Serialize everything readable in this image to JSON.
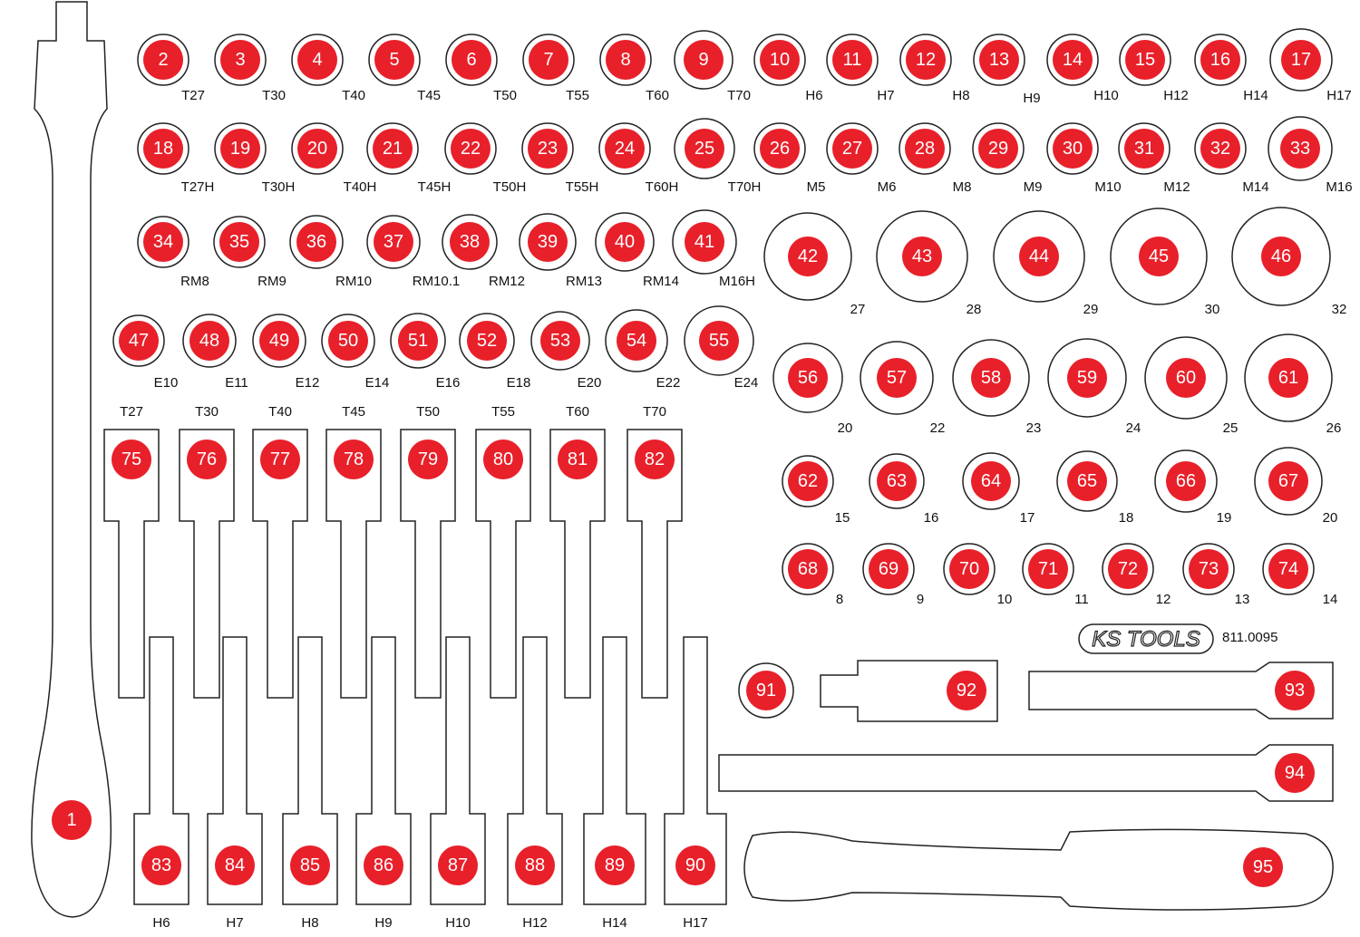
{
  "colors": {
    "marker": "#e8202a",
    "outline": "#222222",
    "background": "#ffffff"
  },
  "logo": {
    "text": "KS TOOLS"
  },
  "article_number": "811.0095",
  "sockets": [
    {
      "num": "2",
      "label": "T27"
    },
    {
      "num": "3",
      "label": "T30"
    },
    {
      "num": "4",
      "label": "T40"
    },
    {
      "num": "5",
      "label": "T45"
    },
    {
      "num": "6",
      "label": "T50"
    },
    {
      "num": "7",
      "label": "T55"
    },
    {
      "num": "8",
      "label": "T60"
    },
    {
      "num": "9",
      "label": "T70"
    },
    {
      "num": "10",
      "label": "H6"
    },
    {
      "num": "11",
      "label": "H7"
    },
    {
      "num": "12",
      "label": "H8"
    },
    {
      "num": "13",
      "label": "H9"
    },
    {
      "num": "14",
      "label": "H10"
    },
    {
      "num": "15",
      "label": "H12"
    },
    {
      "num": "16",
      "label": "H14"
    },
    {
      "num": "17",
      "label": "H17"
    },
    {
      "num": "18",
      "label": "T27H"
    },
    {
      "num": "19",
      "label": "T30H"
    },
    {
      "num": "20",
      "label": "T40H"
    },
    {
      "num": "21",
      "label": "T45H"
    },
    {
      "num": "22",
      "label": "T50H"
    },
    {
      "num": "23",
      "label": "T55H"
    },
    {
      "num": "24",
      "label": "T60H"
    },
    {
      "num": "25",
      "label": "T70H"
    },
    {
      "num": "26",
      "label": "M5"
    },
    {
      "num": "27",
      "label": "M6"
    },
    {
      "num": "28",
      "label": "M8"
    },
    {
      "num": "29",
      "label": "M9"
    },
    {
      "num": "30",
      "label": "M10"
    },
    {
      "num": "31",
      "label": "M12"
    },
    {
      "num": "32",
      "label": "M14"
    },
    {
      "num": "33",
      "label": "M16"
    },
    {
      "num": "34",
      "label": "RM8"
    },
    {
      "num": "35",
      "label": "RM9"
    },
    {
      "num": "36",
      "label": "RM10"
    },
    {
      "num": "37",
      "label": "RM10.1"
    },
    {
      "num": "38",
      "label": "RM12"
    },
    {
      "num": "39",
      "label": "RM13"
    },
    {
      "num": "40",
      "label": "RM14"
    },
    {
      "num": "41",
      "label": "M16H"
    },
    {
      "num": "42",
      "label": "27"
    },
    {
      "num": "43",
      "label": "28"
    },
    {
      "num": "44",
      "label": "29"
    },
    {
      "num": "45",
      "label": "30"
    },
    {
      "num": "46",
      "label": "32"
    },
    {
      "num": "47",
      "label": "E10"
    },
    {
      "num": "48",
      "label": "E11"
    },
    {
      "num": "49",
      "label": "E12"
    },
    {
      "num": "50",
      "label": "E14"
    },
    {
      "num": "51",
      "label": "E16"
    },
    {
      "num": "52",
      "label": "E18"
    },
    {
      "num": "53",
      "label": "E20"
    },
    {
      "num": "54",
      "label": "E22"
    },
    {
      "num": "55",
      "label": "E24"
    },
    {
      "num": "56",
      "label": "20"
    },
    {
      "num": "57",
      "label": "22"
    },
    {
      "num": "58",
      "label": "23"
    },
    {
      "num": "59",
      "label": "24"
    },
    {
      "num": "60",
      "label": "25"
    },
    {
      "num": "61",
      "label": "26"
    },
    {
      "num": "62",
      "label": "15"
    },
    {
      "num": "63",
      "label": "16"
    },
    {
      "num": "64",
      "label": "17"
    },
    {
      "num": "65",
      "label": "18"
    },
    {
      "num": "66",
      "label": "19"
    },
    {
      "num": "67",
      "label": "20"
    },
    {
      "num": "68",
      "label": "8"
    },
    {
      "num": "69",
      "label": "9"
    },
    {
      "num": "70",
      "label": "10"
    },
    {
      "num": "71",
      "label": "11"
    },
    {
      "num": "72",
      "label": "12"
    },
    {
      "num": "73",
      "label": "13"
    },
    {
      "num": "74",
      "label": "14"
    },
    {
      "num": "91",
      "label": ""
    }
  ],
  "bits_top": [
    {
      "num": "75",
      "label": "T27"
    },
    {
      "num": "76",
      "label": "T30"
    },
    {
      "num": "77",
      "label": "T40"
    },
    {
      "num": "78",
      "label": "T45"
    },
    {
      "num": "79",
      "label": "T50"
    },
    {
      "num": "80",
      "label": "T55"
    },
    {
      "num": "81",
      "label": "T60"
    },
    {
      "num": "82",
      "label": "T70"
    }
  ],
  "bits_bottom": [
    {
      "num": "83",
      "label": "H6"
    },
    {
      "num": "84",
      "label": "H7"
    },
    {
      "num": "85",
      "label": "H8"
    },
    {
      "num": "86",
      "label": "H9"
    },
    {
      "num": "87",
      "label": "H10"
    },
    {
      "num": "88",
      "label": "H12"
    },
    {
      "num": "89",
      "label": "H14"
    },
    {
      "num": "90",
      "label": "H17"
    }
  ],
  "tools": [
    {
      "num": "1",
      "name": "screwdriver-handle"
    },
    {
      "num": "92",
      "name": "adapter"
    },
    {
      "num": "93",
      "name": "extension-short"
    },
    {
      "num": "94",
      "name": "extension-long"
    },
    {
      "num": "95",
      "name": "ratchet"
    }
  ]
}
